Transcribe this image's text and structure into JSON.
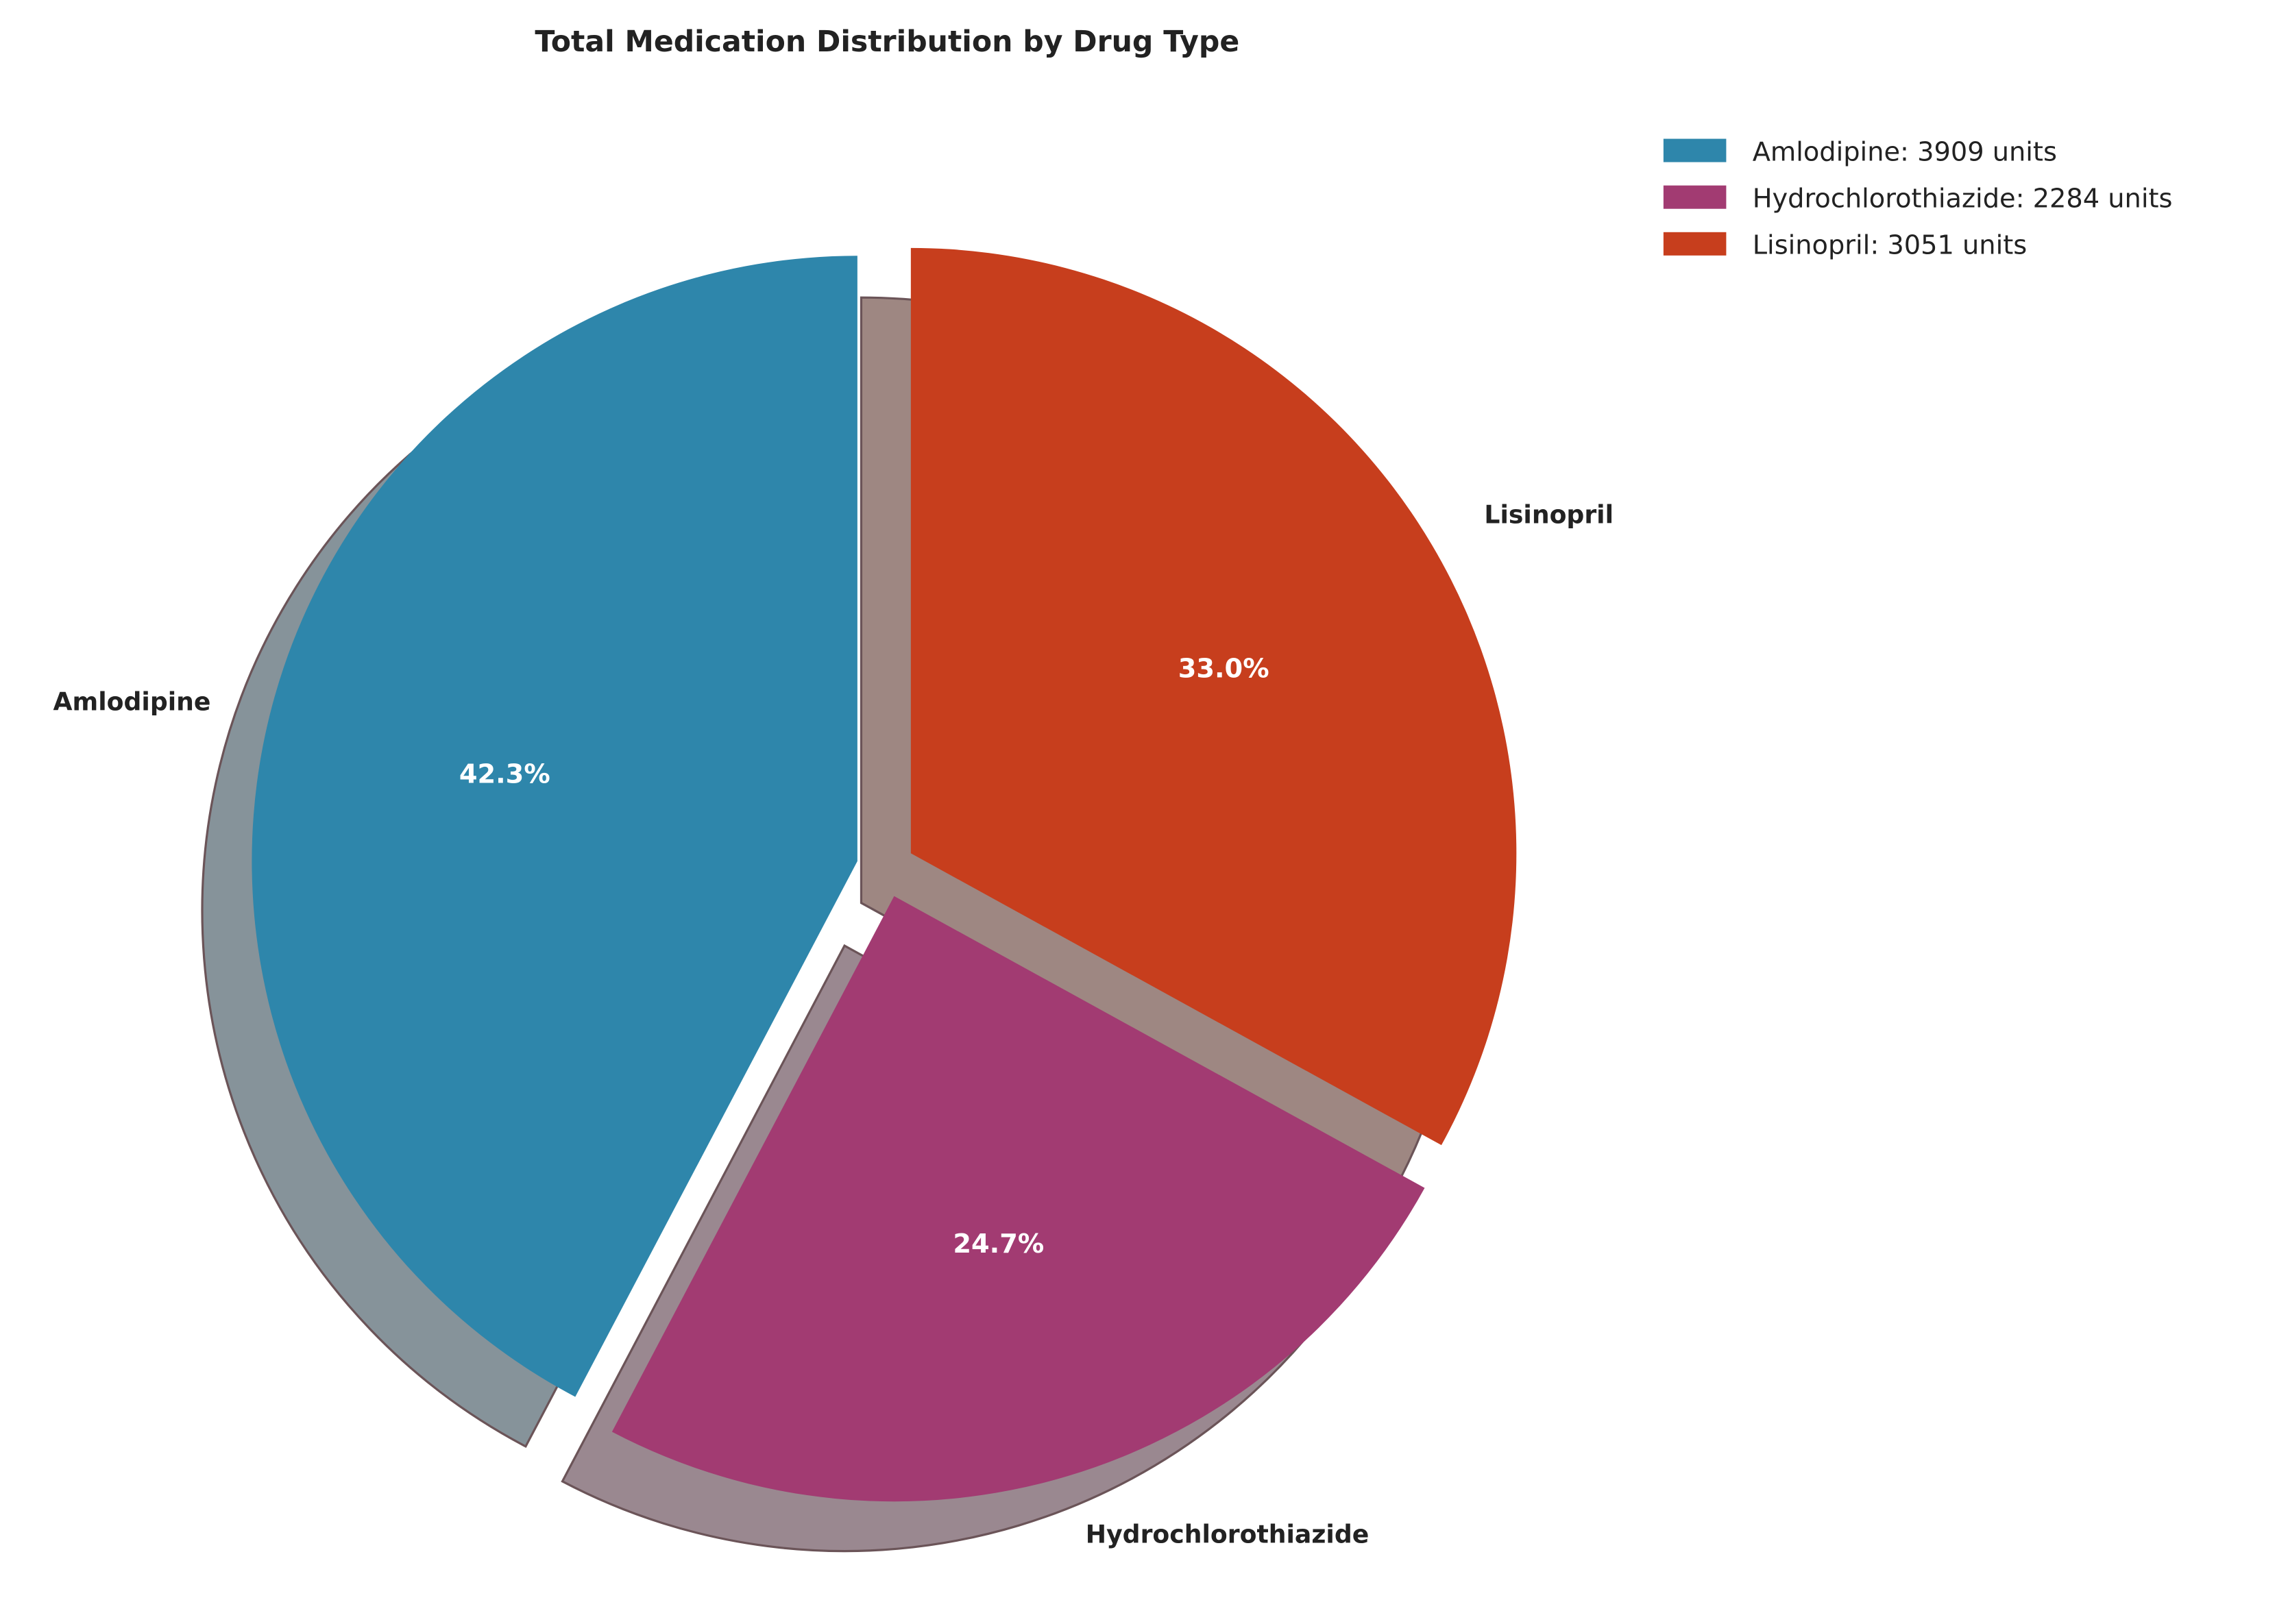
{
  "chart_data": {
    "type": "pie",
    "title": "Total Medication Distribution by Drug Type",
    "categories": [
      "Amlodipine",
      "Hydrochlorothiazide",
      "Lisinopril"
    ],
    "values": [
      3909,
      2284,
      3051
    ],
    "percent_labels": [
      "42.3%",
      "24.7%",
      "33.0%"
    ],
    "colors": [
      "#2E86AB",
      "#A23B72",
      "#C73E1D"
    ],
    "shadow_colors": [
      "#86939A",
      "#9A8890",
      "#9E8782"
    ],
    "start_angle": 90,
    "direction": "counterclockwise",
    "exploded": true,
    "shadow": true,
    "legend": {
      "placement": "top-right",
      "entries": [
        "Amlodipine: 3909 units",
        "Hydrochlorothiazide: 2284 units",
        "Lisinopril: 3051 units"
      ]
    }
  }
}
